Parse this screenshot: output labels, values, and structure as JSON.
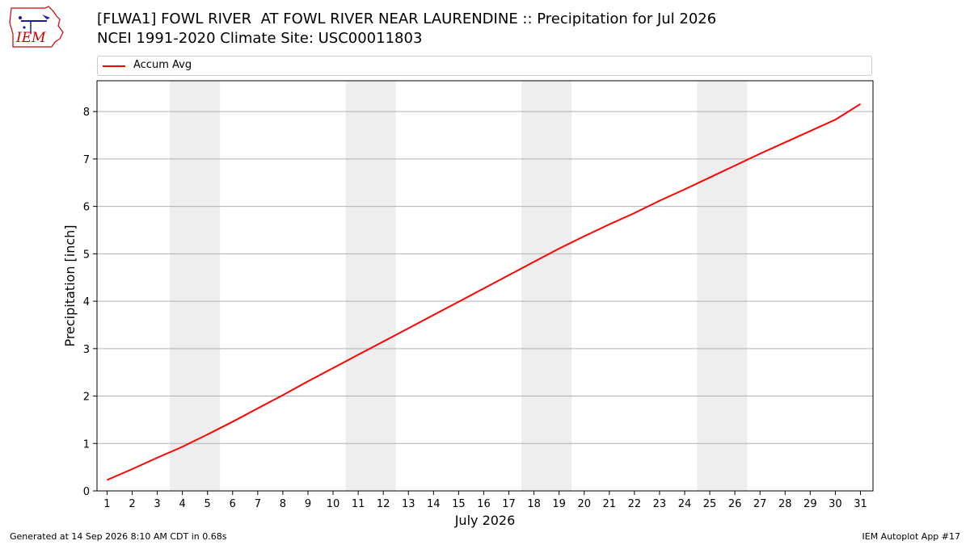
{
  "title_line1": "[FLWA1] FOWL RIVER  AT FOWL RIVER NEAR LAURENDINE :: Precipitation for Jul 2026",
  "title_line2": "NCEI 1991-2020 Climate Site: USC00011803",
  "logo_text": "IEM",
  "footer_left": "Generated at 14 Sep 2026 8:10 AM CDT in 0.68s",
  "footer_right": "IEM Autoplot App #17",
  "colors": {
    "line": "#ff0000",
    "weekend_band": "#eeeeee",
    "grid": "#b0b0b0",
    "logo": "#cc0000"
  },
  "chart_data": {
    "type": "line",
    "xlabel": "July 2026",
    "ylabel": "Precipitation [inch]",
    "xlim": [
      0.6,
      31.5
    ],
    "ylim": [
      0,
      8.65
    ],
    "x": [
      1,
      2,
      3,
      4,
      5,
      6,
      7,
      8,
      9,
      10,
      11,
      12,
      13,
      14,
      15,
      16,
      17,
      18,
      19,
      20,
      21,
      22,
      23,
      24,
      25,
      26,
      27,
      28,
      29,
      30,
      31
    ],
    "x_tick_labels": [
      "1",
      "2",
      "3",
      "4",
      "5",
      "6",
      "7",
      "8",
      "9",
      "10",
      "11",
      "12",
      "13",
      "14",
      "15",
      "16",
      "17",
      "18",
      "19",
      "20",
      "21",
      "22",
      "23",
      "24",
      "25",
      "26",
      "27",
      "28",
      "29",
      "30",
      "31"
    ],
    "y_ticks": [
      0,
      1,
      2,
      3,
      4,
      5,
      6,
      7,
      8
    ],
    "y_tick_labels": [
      "0",
      "1",
      "2",
      "3",
      "4",
      "5",
      "6",
      "7",
      "8"
    ],
    "grid": "horizontal",
    "legend_position": "top",
    "weekend_bands": [
      [
        3.5,
        5.5
      ],
      [
        10.5,
        12.5
      ],
      [
        17.5,
        19.5
      ],
      [
        24.5,
        26.5
      ]
    ],
    "series": [
      {
        "name": "Accum Avg",
        "values": [
          0.23,
          0.46,
          0.7,
          0.93,
          1.19,
          1.46,
          1.74,
          2.02,
          2.31,
          2.59,
          2.87,
          3.15,
          3.43,
          3.71,
          3.99,
          4.27,
          4.55,
          4.83,
          5.11,
          5.37,
          5.62,
          5.86,
          6.12,
          6.36,
          6.61,
          6.86,
          7.11,
          7.35,
          7.59,
          7.83,
          8.16
        ]
      }
    ]
  }
}
